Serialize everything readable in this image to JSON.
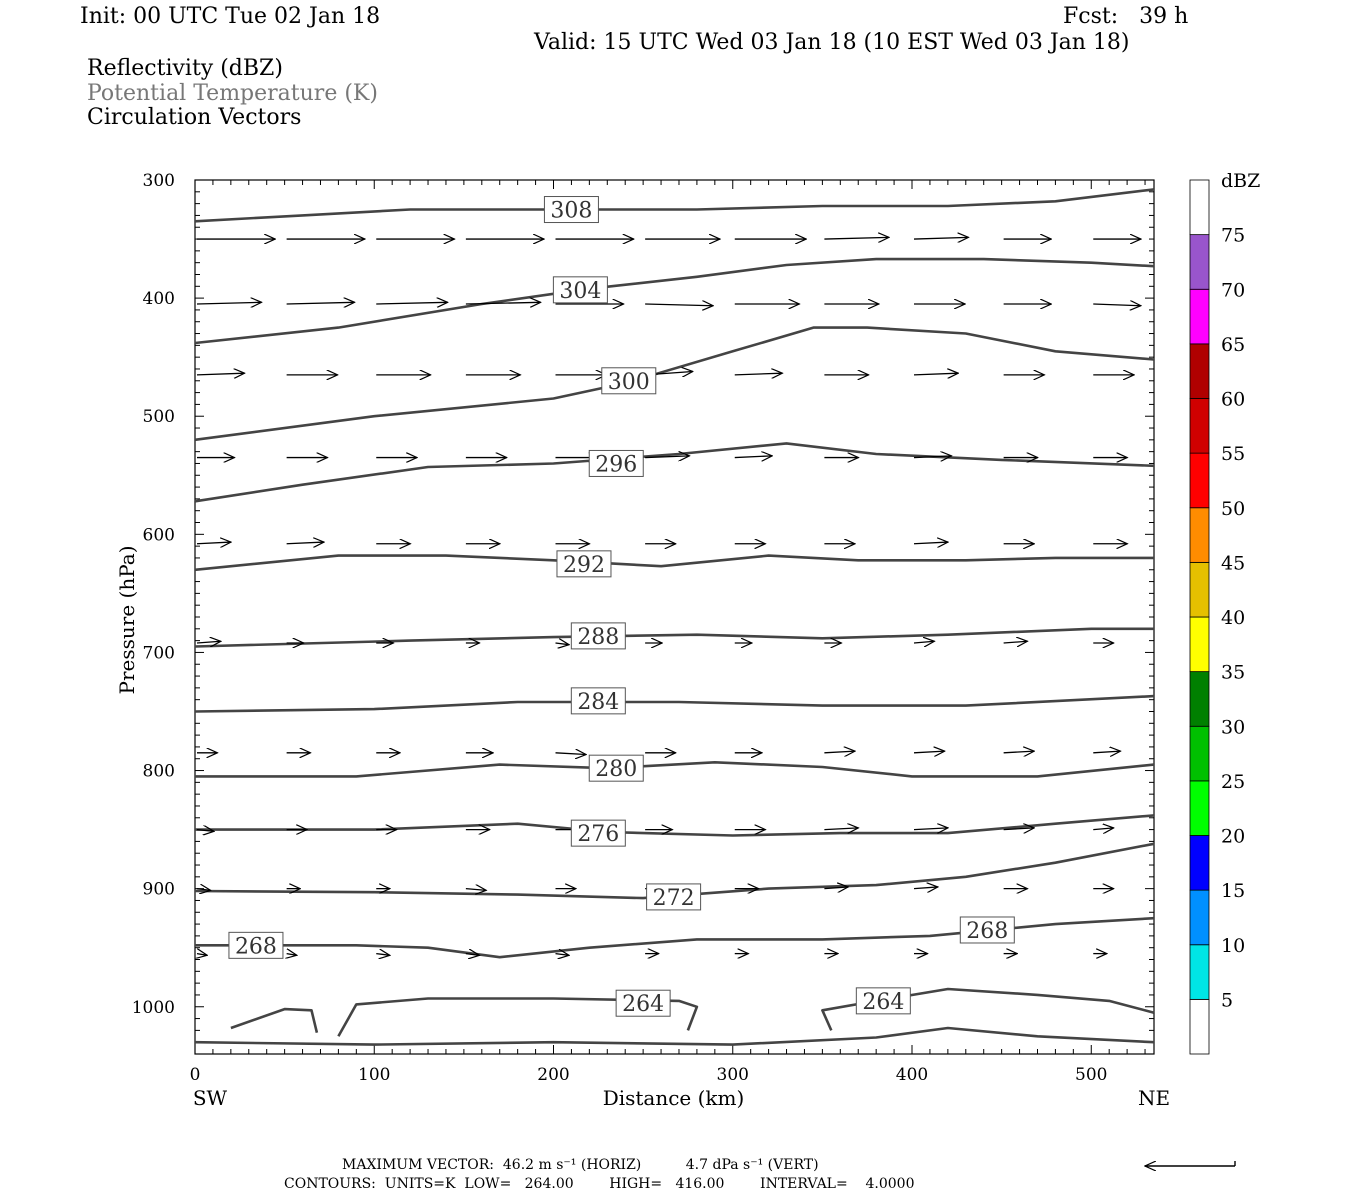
{
  "header": {
    "init": "Init: 00 UTC Tue 02 Jan 18",
    "fcst": "Fcst:   39 h",
    "valid": "Valid: 15 UTC Wed 03 Jan 18 (10 EST Wed 03 Jan 18)",
    "field1": "Reflectivity (dBZ)",
    "field2": "Potential Temperature (K)",
    "field3": "Circulation Vectors"
  },
  "footer": {
    "max_vector": "MAXIMUM VECTOR:  46.2 m s⁻¹ (HORIZ)          4.7 dPa s⁻¹ (VERT)",
    "contours": "CONTOURS:  UNITS=K  LOW=   264.00        HIGH=   416.00        INTERVAL=    4.0000"
  },
  "colorbar": {
    "title": "dBZ",
    "levels": [
      "5",
      "10",
      "15",
      "20",
      "25",
      "30",
      "35",
      "40",
      "45",
      "50",
      "55",
      "60",
      "65",
      "70",
      "75"
    ],
    "colors": [
      "#ffffff",
      "#00e5e5",
      "#0090ff",
      "#0000ff",
      "#00ff00",
      "#00c000",
      "#008000",
      "#ffff00",
      "#e5c000",
      "#ff8c00",
      "#ff0000",
      "#d00000",
      "#b00000",
      "#ff00ff",
      "#9955cc",
      "#ffffff"
    ]
  },
  "chart_data": {
    "type": "contour-cross-section",
    "xlabel": "Distance (km)",
    "ylabel": "Pressure (hPa)",
    "x_left_label": "SW",
    "x_right_label": "NE",
    "xlim": [
      0,
      535
    ],
    "ylim": [
      1040,
      300
    ],
    "xticks": [
      0,
      100,
      200,
      300,
      400,
      500
    ],
    "yticks": [
      300,
      400,
      500,
      600,
      700,
      800,
      900,
      1000
    ],
    "contours": [
      {
        "label": "308",
        "label_at": [
          210,
          325
        ],
        "points": [
          [
            0,
            335
          ],
          [
            60,
            330
          ],
          [
            120,
            325
          ],
          [
            200,
            325
          ],
          [
            280,
            325
          ],
          [
            350,
            322
          ],
          [
            420,
            322
          ],
          [
            480,
            318
          ],
          [
            535,
            308
          ]
        ]
      },
      {
        "label": "304",
        "label_at": [
          215,
          393
        ],
        "points": [
          [
            0,
            438
          ],
          [
            80,
            425
          ],
          [
            160,
            405
          ],
          [
            220,
            392
          ],
          [
            280,
            382
          ],
          [
            330,
            372
          ],
          [
            380,
            367
          ],
          [
            440,
            367
          ],
          [
            500,
            370
          ],
          [
            535,
            373
          ]
        ]
      },
      {
        "label": "300",
        "label_at": [
          242,
          470
        ],
        "points": [
          [
            0,
            520
          ],
          [
            100,
            500
          ],
          [
            200,
            485
          ],
          [
            240,
            472
          ],
          [
            300,
            445
          ],
          [
            345,
            425
          ],
          [
            375,
            425
          ],
          [
            430,
            430
          ],
          [
            480,
            445
          ],
          [
            535,
            452
          ]
        ]
      },
      {
        "label": "296",
        "label_at": [
          235,
          540
        ],
        "points": [
          [
            0,
            572
          ],
          [
            60,
            558
          ],
          [
            130,
            543
          ],
          [
            200,
            540
          ],
          [
            270,
            532
          ],
          [
            330,
            523
          ],
          [
            380,
            532
          ],
          [
            450,
            537
          ],
          [
            535,
            542
          ]
        ]
      },
      {
        "label": "292",
        "label_at": [
          217,
          625
        ],
        "points": [
          [
            0,
            630
          ],
          [
            80,
            618
          ],
          [
            140,
            618
          ],
          [
            200,
            622
          ],
          [
            260,
            627
          ],
          [
            320,
            618
          ],
          [
            370,
            622
          ],
          [
            430,
            622
          ],
          [
            480,
            620
          ],
          [
            535,
            620
          ]
        ]
      },
      {
        "label": "288",
        "label_at": [
          225,
          686
        ],
        "points": [
          [
            0,
            695
          ],
          [
            120,
            690
          ],
          [
            200,
            687
          ],
          [
            280,
            685
          ],
          [
            350,
            688
          ],
          [
            420,
            685
          ],
          [
            500,
            680
          ],
          [
            535,
            680
          ]
        ]
      },
      {
        "label": "284",
        "label_at": [
          225,
          741
        ],
        "points": [
          [
            0,
            750
          ],
          [
            100,
            748
          ],
          [
            180,
            742
          ],
          [
            270,
            742
          ],
          [
            350,
            745
          ],
          [
            430,
            745
          ],
          [
            535,
            737
          ]
        ]
      },
      {
        "label": "280",
        "label_at": [
          235,
          798
        ],
        "points": [
          [
            0,
            805
          ],
          [
            90,
            805
          ],
          [
            170,
            795
          ],
          [
            230,
            798
          ],
          [
            290,
            793
          ],
          [
            350,
            797
          ],
          [
            400,
            805
          ],
          [
            470,
            805
          ],
          [
            535,
            795
          ]
        ]
      },
      {
        "label": "276",
        "label_at": [
          225,
          853
        ],
        "points": [
          [
            0,
            850
          ],
          [
            100,
            850
          ],
          [
            180,
            845
          ],
          [
            230,
            852
          ],
          [
            300,
            855
          ],
          [
            360,
            853
          ],
          [
            420,
            853
          ],
          [
            480,
            845
          ],
          [
            535,
            838
          ]
        ]
      },
      {
        "label": "272",
        "label_at": [
          267,
          907
        ],
        "points": [
          [
            0,
            902
          ],
          [
            100,
            903
          ],
          [
            180,
            905
          ],
          [
            250,
            908
          ],
          [
            320,
            900
          ],
          [
            380,
            897
          ],
          [
            430,
            890
          ],
          [
            480,
            878
          ],
          [
            535,
            862
          ]
        ]
      },
      {
        "label": "268",
        "label_at": [
          34,
          948
        ],
        "points": [
          [
            0,
            948
          ],
          [
            90,
            948
          ],
          [
            130,
            950
          ],
          [
            170,
            958
          ],
          [
            220,
            950
          ],
          [
            280,
            943
          ],
          [
            350,
            943
          ],
          [
            410,
            940
          ],
          [
            480,
            930
          ],
          [
            535,
            925
          ]
        ]
      },
      {
        "label": "268",
        "label_at": [
          442,
          935
        ],
        "points": []
      },
      {
        "label": "264",
        "label_at": [
          250,
          997
        ],
        "points": [
          [
            80,
            1025
          ],
          [
            90,
            998
          ],
          [
            130,
            993
          ],
          [
            200,
            993
          ],
          [
            270,
            995
          ],
          [
            280,
            1000
          ],
          [
            275,
            1020
          ]
        ]
      },
      {
        "label": "264",
        "label_at": [
          384,
          995
        ],
        "points": [
          [
            355,
            1020
          ],
          [
            350,
            1003
          ],
          [
            380,
            995
          ],
          [
            420,
            985
          ],
          [
            470,
            990
          ],
          [
            510,
            995
          ],
          [
            535,
            1005
          ]
        ]
      },
      {
        "label": "",
        "label_at": null,
        "points": [
          [
            20,
            1018
          ],
          [
            50,
            1002
          ],
          [
            65,
            1003
          ],
          [
            68,
            1022
          ]
        ]
      },
      {
        "label": "",
        "label_at": null,
        "points": [
          [
            0,
            1030
          ],
          [
            100,
            1032
          ],
          [
            200,
            1030
          ],
          [
            300,
            1032
          ],
          [
            380,
            1026
          ],
          [
            420,
            1018
          ],
          [
            470,
            1025
          ],
          [
            535,
            1030
          ]
        ]
      }
    ],
    "vector_rows_hpa": [
      350,
      405,
      465,
      535,
      608,
      692,
      785,
      850,
      900,
      955
    ],
    "vector_cols_km": [
      0,
      50,
      100,
      150,
      200,
      250,
      300,
      350,
      400,
      450,
      500
    ],
    "vectors": [
      [
        [
          46,
          0
        ],
        [
          46,
          0
        ],
        [
          46,
          0
        ],
        [
          46,
          0
        ],
        [
          46,
          0
        ],
        [
          44,
          0
        ],
        [
          42,
          0
        ],
        [
          38,
          1
        ],
        [
          32,
          1
        ],
        [
          28,
          0
        ],
        [
          28,
          0
        ]
      ],
      [
        [
          38,
          1
        ],
        [
          40,
          1
        ],
        [
          42,
          1
        ],
        [
          44,
          1
        ],
        [
          40,
          0
        ],
        [
          40,
          -1
        ],
        [
          38,
          0
        ],
        [
          32,
          0
        ],
        [
          30,
          0
        ],
        [
          28,
          0
        ],
        [
          28,
          -1
        ]
      ],
      [
        [
          28,
          1
        ],
        [
          30,
          0
        ],
        [
          32,
          0
        ],
        [
          32,
          0
        ],
        [
          30,
          0
        ],
        [
          28,
          2
        ],
        [
          28,
          1
        ],
        [
          26,
          0
        ],
        [
          26,
          1
        ],
        [
          24,
          0
        ],
        [
          24,
          0
        ]
      ],
      [
        [
          22,
          0
        ],
        [
          24,
          0
        ],
        [
          24,
          0
        ],
        [
          24,
          0
        ],
        [
          26,
          0
        ],
        [
          26,
          1
        ],
        [
          22,
          1
        ],
        [
          20,
          0
        ],
        [
          22,
          1
        ],
        [
          20,
          0
        ],
        [
          20,
          0
        ]
      ],
      [
        [
          20,
          1
        ],
        [
          22,
          1
        ],
        [
          20,
          0
        ],
        [
          20,
          0
        ],
        [
          20,
          0
        ],
        [
          18,
          0
        ],
        [
          18,
          0
        ],
        [
          18,
          0
        ],
        [
          20,
          1
        ],
        [
          18,
          0
        ],
        [
          20,
          0
        ]
      ],
      [
        [
          14,
          1
        ],
        [
          10,
          0
        ],
        [
          10,
          0
        ],
        [
          8,
          0
        ],
        [
          8,
          -1
        ],
        [
          10,
          0
        ],
        [
          10,
          0
        ],
        [
          10,
          0
        ],
        [
          12,
          1
        ],
        [
          14,
          1
        ],
        [
          12,
          0
        ]
      ],
      [
        [
          12,
          0
        ],
        [
          14,
          0
        ],
        [
          14,
          0
        ],
        [
          16,
          0
        ],
        [
          18,
          -1
        ],
        [
          18,
          0
        ],
        [
          16,
          0
        ],
        [
          18,
          1
        ],
        [
          18,
          1
        ],
        [
          18,
          1
        ],
        [
          16,
          1
        ]
      ],
      [
        [
          10,
          -1
        ],
        [
          12,
          0
        ],
        [
          12,
          0
        ],
        [
          14,
          0
        ],
        [
          16,
          0
        ],
        [
          16,
          0
        ],
        [
          18,
          0
        ],
        [
          20,
          1
        ],
        [
          20,
          1
        ],
        [
          18,
          1
        ],
        [
          12,
          1
        ]
      ],
      [
        [
          8,
          -1
        ],
        [
          8,
          0
        ],
        [
          8,
          0
        ],
        [
          12,
          -1
        ],
        [
          12,
          0
        ],
        [
          12,
          0
        ],
        [
          14,
          0
        ],
        [
          14,
          1
        ],
        [
          14,
          1
        ],
        [
          14,
          0
        ],
        [
          12,
          0
        ]
      ],
      [
        [
          6,
          -1
        ],
        [
          6,
          -1
        ],
        [
          8,
          -1
        ],
        [
          8,
          -1
        ],
        [
          8,
          -1
        ],
        [
          8,
          0
        ],
        [
          8,
          0
        ],
        [
          8,
          0
        ],
        [
          8,
          0
        ],
        [
          8,
          0
        ],
        [
          8,
          0
        ]
      ]
    ]
  }
}
